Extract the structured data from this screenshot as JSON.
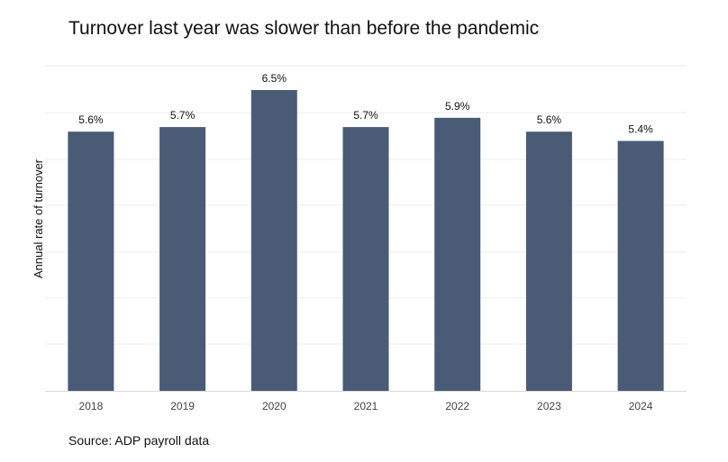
{
  "chart_data": {
    "type": "bar",
    "title": "Turnover last year was slower than before the pandemic",
    "xlabel": "",
    "ylabel": "Annual rate of turnover",
    "categories": [
      "2018",
      "2019",
      "2020",
      "2021",
      "2022",
      "2023",
      "2024"
    ],
    "values": [
      5.6,
      5.7,
      6.5,
      5.7,
      5.9,
      5.6,
      5.4
    ],
    "data_labels": [
      "5.6%",
      "5.7%",
      "6.5%",
      "5.7%",
      "5.9%",
      "5.6%",
      "5.4%"
    ],
    "ylim": [
      0,
      6.5
    ],
    "grid": true,
    "legend": "none",
    "bar_color": "#4a5b76",
    "source": "Source: ADP payroll data"
  }
}
